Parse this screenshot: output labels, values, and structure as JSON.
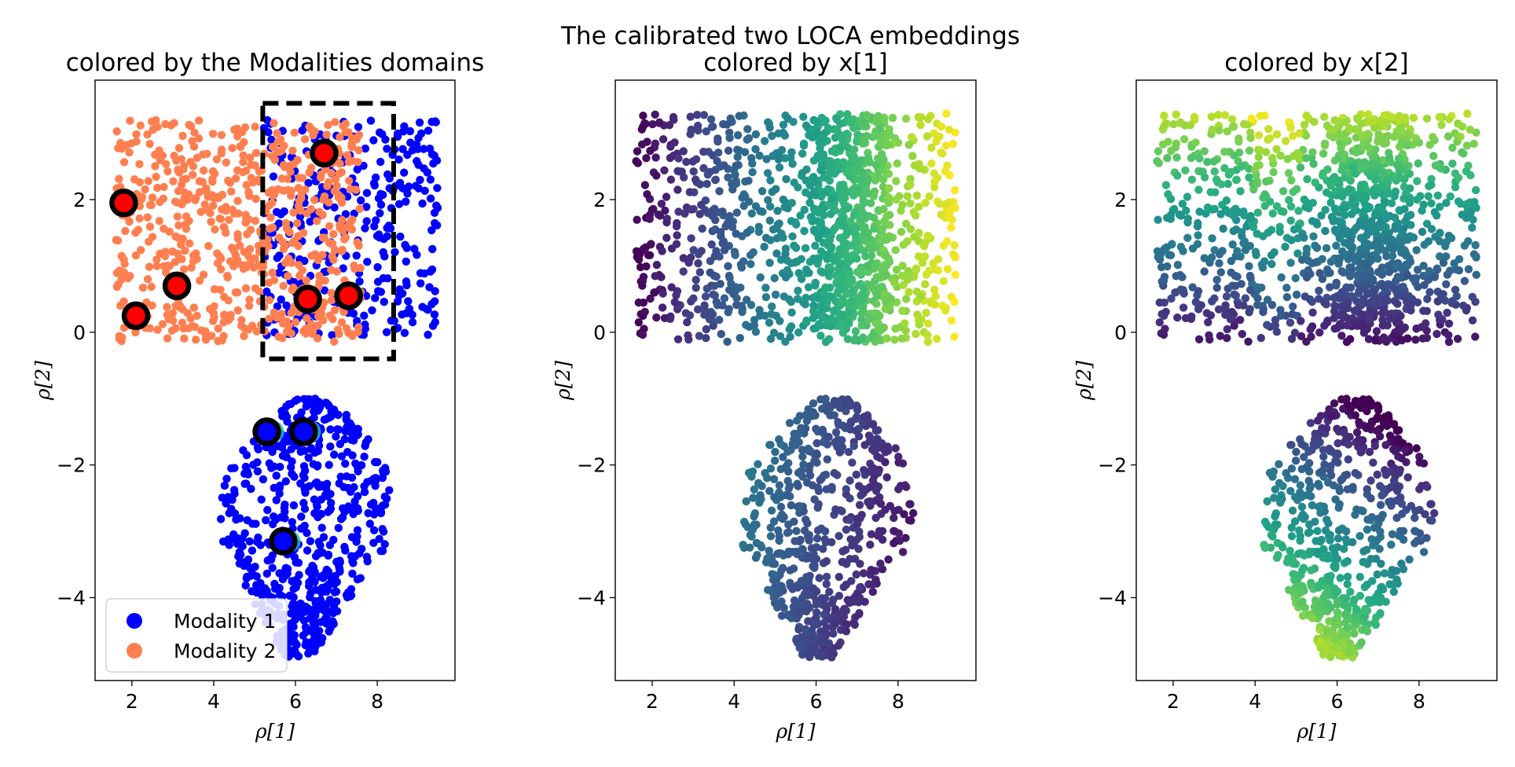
{
  "suptitle": "The calibrated two LOCA embeddings",
  "chart_data": [
    {
      "type": "scatter",
      "title": "colored by the Modalities domains",
      "xlabel": "ρ[1]",
      "ylabel": "ρ[2]",
      "xlim": [
        1.1,
        9.9
      ],
      "ylim": [
        -5.25,
        3.8
      ],
      "xticks": [
        2,
        4,
        6,
        8
      ],
      "yticks": [
        -4,
        -2,
        0,
        2
      ],
      "grid": false,
      "legend": {
        "placement": "lower-left",
        "entries": [
          {
            "label": "Modality 1",
            "color": "#0000ff"
          },
          {
            "label": "Modality 2",
            "color": "#ff7f50"
          }
        ]
      },
      "series": [
        {
          "name": "Modality 1",
          "color": "#0000ff",
          "regions": [
            {
              "shape": "rect",
              "x": [
                5.2,
                9.5
              ],
              "y": [
                -0.1,
                3.2
              ],
              "n": 330
            },
            {
              "shape": "blob",
              "n": 620
            }
          ]
        },
        {
          "name": "Modality 2",
          "color": "#ff7f50",
          "regions": [
            {
              "shape": "rect",
              "x": [
                1.6,
                7.6
              ],
              "y": [
                -0.15,
                3.2
              ],
              "n": 640
            }
          ]
        }
      ],
      "highlighted_points": [
        {
          "x": 6.7,
          "y": 2.7,
          "fill": "#ff0000"
        },
        {
          "x": 1.8,
          "y": 1.95,
          "fill": "#ff0000"
        },
        {
          "x": 3.1,
          "y": 0.7,
          "fill": "#ff0000"
        },
        {
          "x": 2.1,
          "y": 0.25,
          "fill": "#ff0000"
        },
        {
          "x": 6.3,
          "y": 0.5,
          "fill": "#ff0000"
        },
        {
          "x": 7.3,
          "y": 0.55,
          "fill": "#ff0000"
        },
        {
          "x": 5.3,
          "y": -1.5,
          "fill": "#0000ff"
        },
        {
          "x": 6.2,
          "y": -1.5,
          "fill": "#0000ff"
        },
        {
          "x": 5.7,
          "y": -3.15,
          "fill": "#0000ff"
        }
      ],
      "highlight_box": {
        "x": [
          5.2,
          8.4
        ],
        "y": [
          -0.4,
          3.45
        ],
        "style": "dashed",
        "color": "#000000"
      }
    },
    {
      "type": "scatter",
      "title": "colored by x[1]",
      "xlabel": "ρ[1]",
      "ylabel": "ρ[2]",
      "xlim": [
        1.1,
        9.9
      ],
      "ylim": [
        -5.25,
        3.8
      ],
      "xticks": [
        2,
        4,
        6,
        8
      ],
      "yticks": [
        -4,
        -2,
        0,
        2
      ],
      "grid": false,
      "colormap": "viridis",
      "color_variable": "x[1]"
    },
    {
      "type": "scatter",
      "title": "colored by x[2]",
      "xlabel": "ρ[1]",
      "ylabel": "ρ[2]",
      "xlim": [
        1.1,
        9.9
      ],
      "ylim": [
        -5.25,
        3.8
      ],
      "xticks": [
        2,
        4,
        6,
        8
      ],
      "yticks": [
        -4,
        -2,
        0,
        2
      ],
      "grid": false,
      "colormap": "viridis",
      "color_variable": "x[2]"
    }
  ],
  "cloud": {
    "upper_region": {
      "x": [
        1.6,
        9.4
      ],
      "y": [
        -0.15,
        3.3
      ],
      "n": 1250
    },
    "lower_region": {
      "center_x": 6.4,
      "top": -1.0,
      "bottom": -4.9,
      "n": 620
    }
  }
}
